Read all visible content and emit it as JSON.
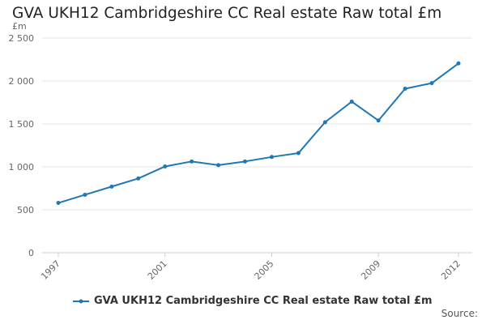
{
  "chart_data": {
    "type": "line",
    "title": "GVA UKH12 Cambridgeshire CC Real estate Raw total £m",
    "ylabel": "£m",
    "xlabel": "",
    "x": [
      1997,
      1998,
      1999,
      2000,
      2001,
      2002,
      2003,
      2004,
      2005,
      2006,
      2007,
      2008,
      2009,
      2010,
      2011,
      2012
    ],
    "x_tick_labels": [
      "1997",
      "2001",
      "2005",
      "2009",
      "2012"
    ],
    "y_tick_values": [
      0,
      500,
      1000,
      1500,
      2000,
      2500
    ],
    "y_tick_labels": [
      "0",
      "500",
      "1 000",
      "1 500",
      "2 000",
      "2 500"
    ],
    "ylim": [
      0,
      2500
    ],
    "grid": true,
    "legend_position": "bottom",
    "series": [
      {
        "name": "GVA UKH12 Cambridgeshire CC Real estate Raw total £m",
        "color": "#1f77b4",
        "values": [
          580,
          675,
          770,
          865,
          1005,
          1063,
          1020,
          1063,
          1115,
          1160,
          1520,
          1760,
          1540,
          1910,
          1975,
          2205
        ]
      }
    ]
  },
  "source_label": "Source:"
}
